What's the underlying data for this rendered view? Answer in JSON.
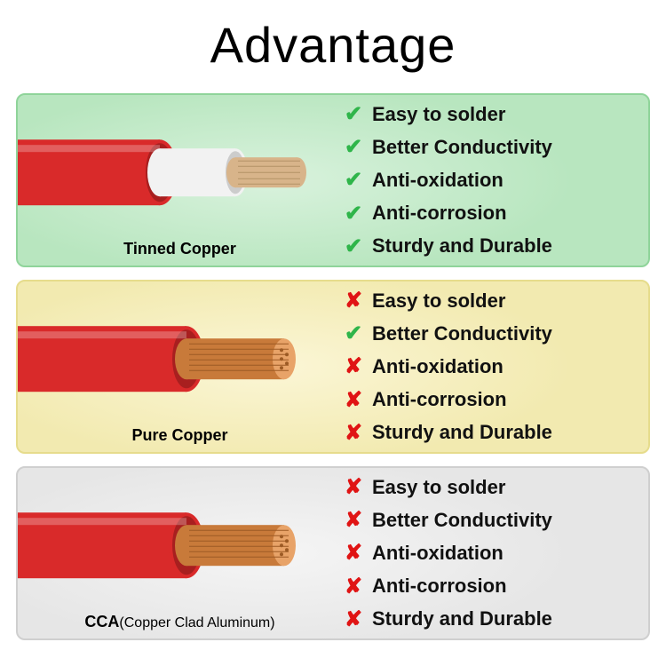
{
  "title": "Advantage",
  "features": [
    "Easy to solder",
    "Better Conductivity",
    "Anti-oxidation",
    "Anti-corrosion",
    "Sturdy and Durable"
  ],
  "icons": {
    "check": "✔",
    "cross": "✘"
  },
  "colors": {
    "check": "#2fb54a",
    "cross": "#e01414",
    "jacket": "#d92a2a",
    "jacket_dark": "#a81f1f",
    "tinned_layer": "#f2f2f2",
    "tinned_layer_dark": "#cccccc",
    "tinned_core": "#d8b48a",
    "copper_core": "#c87a3a",
    "copper_core_light": "#e8a368",
    "cca_core": "#c87a3a"
  },
  "cards": [
    {
      "id": "tinned",
      "label": "Tinned Copper",
      "label_sub": "",
      "bg": "#b8e6bf",
      "bg_inner": "#d9f2dd",
      "border": "#8fd49a",
      "cable_type": "tinned",
      "marks": [
        "check",
        "check",
        "check",
        "check",
        "check"
      ]
    },
    {
      "id": "pure",
      "label": "Pure Copper",
      "label_sub": "",
      "bg": "#f2eab0",
      "bg_inner": "#fbf6d6",
      "border": "#e6dc8c",
      "cable_type": "copper",
      "marks": [
        "cross",
        "check",
        "cross",
        "cross",
        "cross"
      ]
    },
    {
      "id": "cca",
      "label": "CCA",
      "label_sub": "(Copper Clad Aluminum)",
      "bg": "#e6e6e6",
      "bg_inner": "#f5f5f5",
      "border": "#cfcfcf",
      "cable_type": "copper",
      "marks": [
        "cross",
        "cross",
        "cross",
        "cross",
        "cross"
      ]
    }
  ]
}
